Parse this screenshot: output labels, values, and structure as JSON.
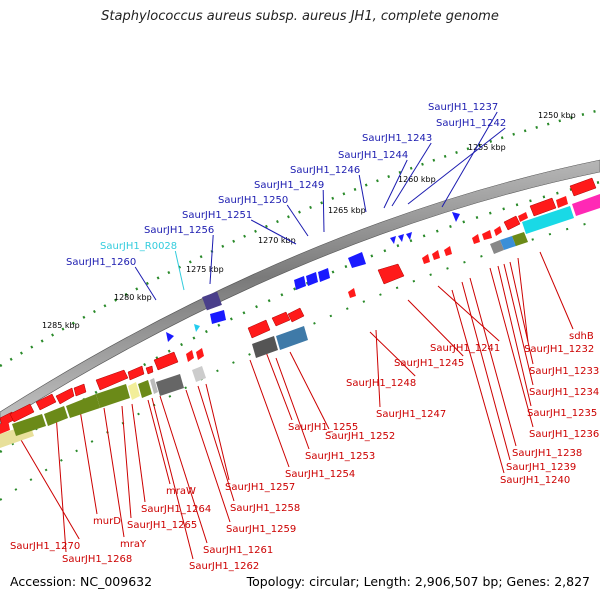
{
  "title": "Staphylococcus aureus subsp. aureus JH1, complete genome",
  "footer": {
    "accession": "Accession: NC_009632",
    "summary": "Topology: circular; Length: 2,906,507 bp; Genes: 2,827"
  },
  "ticks": [
    "1250 kbp",
    "1255 kbp",
    "1260 kbp",
    "1265 kbp",
    "1270 kbp",
    "1275 kbp",
    "1280 kbp",
    "1285 kbp"
  ],
  "upper_labels": [
    "SaurJH1_1237",
    "SaurJH1_1242",
    "SaurJH1_1243",
    "SaurJH1_1244",
    "SaurJH1_1246",
    "SaurJH1_1249",
    "SaurJH1_1250",
    "SaurJH1_1251",
    "SaurJH1_1256",
    "SaurJH1_R0028",
    "SaurJH1_1260"
  ],
  "lower_labels": [
    "sdhB",
    "SaurJH1_1232",
    "SaurJH1_1233",
    "SaurJH1_1234",
    "SaurJH1_1235",
    "SaurJH1_1236",
    "SaurJH1_1238",
    "SaurJH1_1239",
    "SaurJH1_1240",
    "SaurJH1_1241",
    "SaurJH1_1245",
    "SaurJH1_1248",
    "SaurJH1_1247",
    "SaurJH1_1255",
    "SaurJH1_1252",
    "SaurJH1_1253",
    "SaurJH1_1254",
    "SaurJH1_1257",
    "SaurJH1_1258",
    "SaurJH1_1259",
    "SaurJH1_1261",
    "SaurJH1_1262",
    "mraW",
    "SaurJH1_1264",
    "SaurJH1_1265",
    "mraY",
    "murD",
    "SaurJH1_1268",
    "SaurJH1_1270"
  ],
  "colors": {
    "forward_cds": "#ff0000",
    "reverse_cds": "#1515ff",
    "rna_label": "#33ccdd",
    "label_blue": "#1c1cb0",
    "label_red": "#cc0000",
    "backbone": "#8a8a8a",
    "gc_skew": "#2f8f2f"
  }
}
